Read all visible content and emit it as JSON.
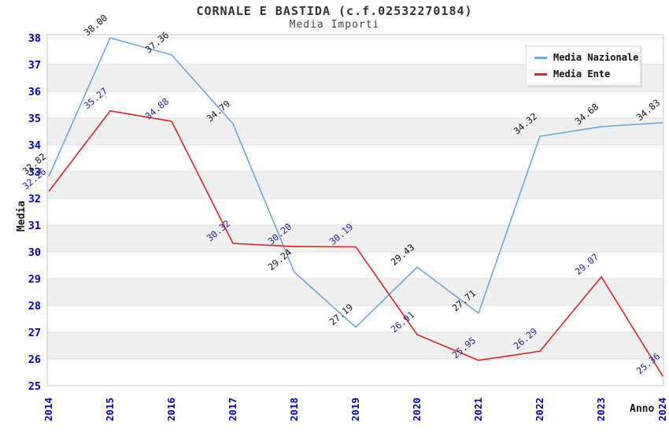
{
  "header": {
    "title": "CORNALE E BASTIDA (c.f.02532270184)",
    "subtitle": "Media Importi"
  },
  "legend": {
    "items": [
      {
        "label": "Media Nazionale",
        "color": "#69a8e2"
      },
      {
        "label": "Media Ente",
        "color": "#e02222"
      }
    ]
  },
  "axes": {
    "y_title": "Media",
    "x_title": "Anno",
    "tick_color": "#0000cc"
  },
  "chart_data": {
    "type": "line",
    "title": "CORNALE E BASTIDA (c.f.02532270184)",
    "subtitle": "Media Importi",
    "xlabel": "Anno",
    "ylabel": "Media",
    "categories": [
      "2014",
      "2015",
      "2016",
      "2017",
      "2018",
      "2019",
      "2020",
      "2021",
      "2022",
      "2023",
      "2024"
    ],
    "series": [
      {
        "name": "Media Nazionale",
        "color": "#69a8e2",
        "label_color": "#111111",
        "values": [
          32.82,
          38.0,
          37.36,
          34.79,
          29.24,
          27.19,
          29.43,
          27.71,
          34.32,
          34.68,
          34.83
        ]
      },
      {
        "name": "Media Ente",
        "color": "#e02222",
        "label_color": "#2222aa",
        "values": [
          32.26,
          35.27,
          34.88,
          30.32,
          30.2,
          30.19,
          26.91,
          25.95,
          26.29,
          29.07,
          25.36
        ]
      }
    ],
    "ylim": [
      25,
      38.1
    ],
    "yticks": [
      25,
      26,
      27,
      28,
      29,
      30,
      31,
      32,
      33,
      34,
      35,
      36,
      37,
      38
    ],
    "grid": true,
    "band_colors": [
      "#ffffff",
      "#f0f0f0"
    ],
    "legend_position": "top-right"
  }
}
